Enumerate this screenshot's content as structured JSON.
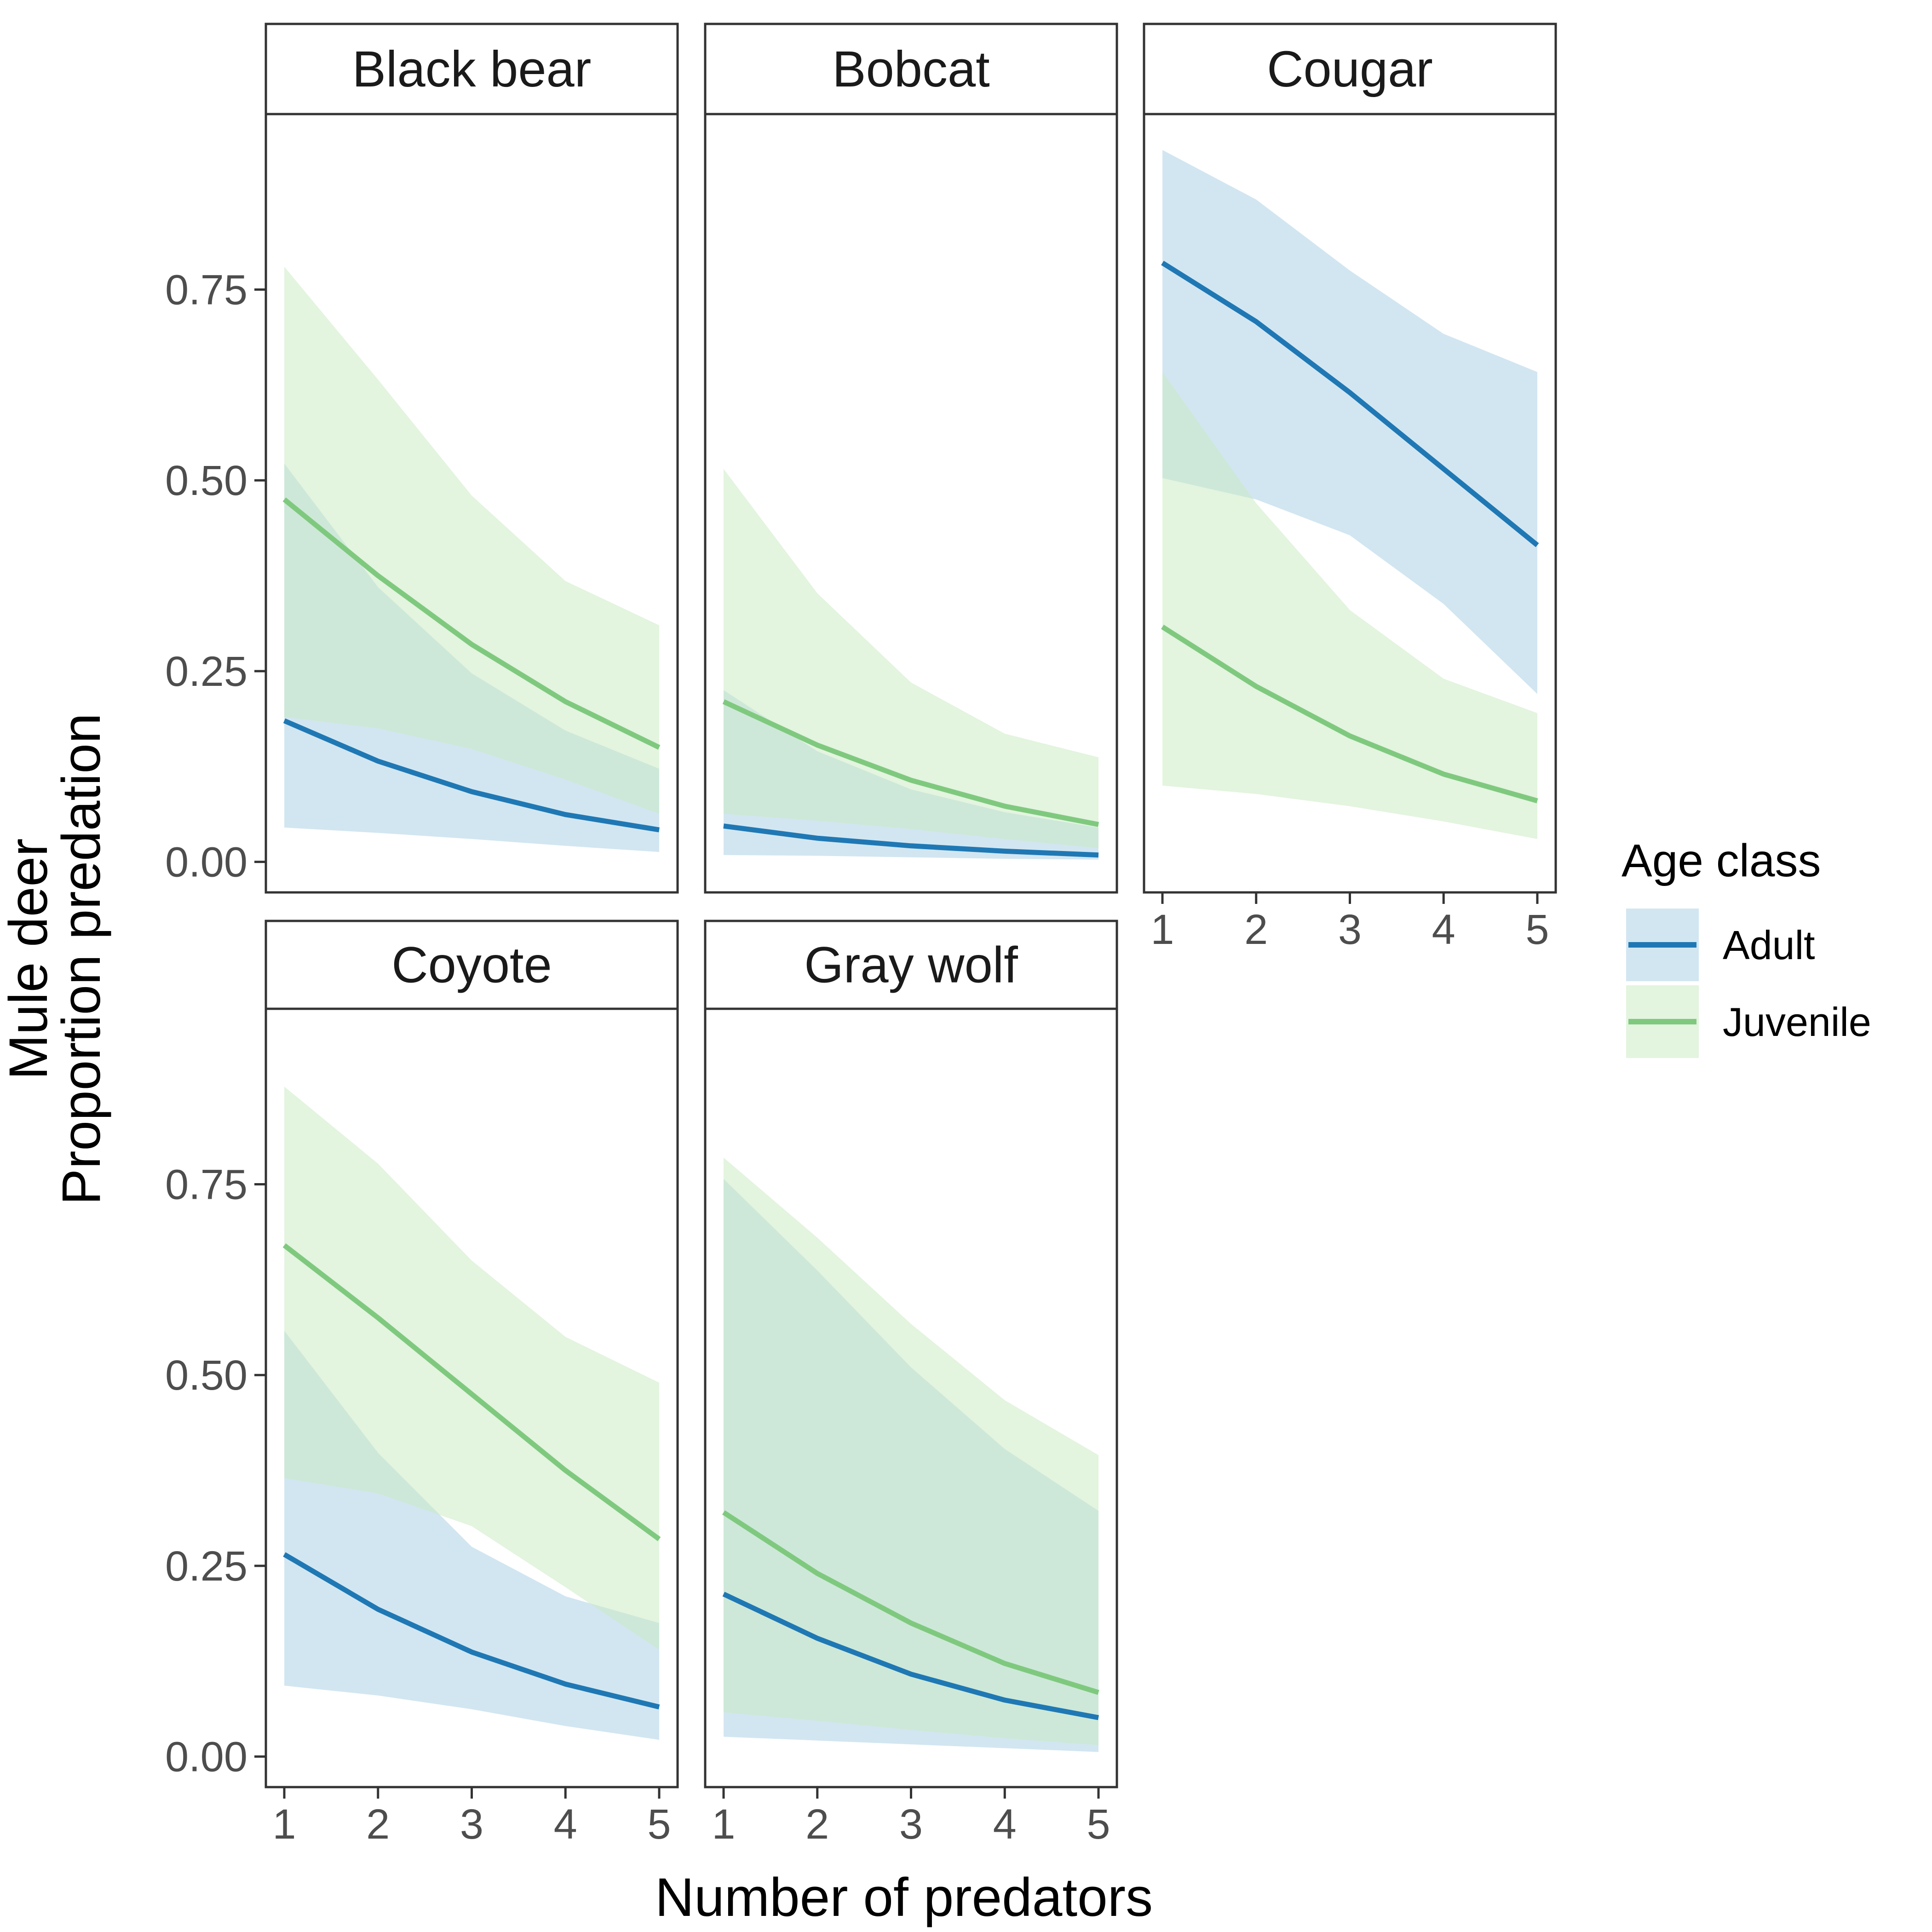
{
  "chart_data": {
    "type": "line",
    "subtype": "faceted line with confidence ribbons",
    "ylabel_line1": "Mule deer",
    "ylabel_line2": "Proportion predation",
    "xlabel": "Number of predators",
    "x": [
      1,
      2,
      3,
      4,
      5
    ],
    "x_ticks": [
      "1",
      "2",
      "3",
      "4",
      "5"
    ],
    "ylim": [
      -0.04,
      0.98
    ],
    "y_ticks": [
      0.0,
      0.25,
      0.5,
      0.75
    ],
    "y_tick_labels": [
      "0.00",
      "0.25",
      "0.50",
      "0.75"
    ],
    "grid": false,
    "legend": {
      "title": "Age class",
      "position": "right",
      "entries": [
        {
          "name": "Adult",
          "line_color": "#1f78b4",
          "fill_color": "#a6cee3"
        },
        {
          "name": "Juvenile",
          "line_color": "#7fc97f",
          "fill_color": "#c7e9c0"
        }
      ]
    },
    "panels": [
      {
        "title": "Black bear",
        "series": [
          {
            "name": "Adult",
            "values": [
              0.185,
              0.132,
              0.092,
              0.062,
              0.042
            ],
            "lower": [
              0.045,
              0.038,
              0.03,
              0.021,
              0.013
            ],
            "upper": [
              0.522,
              0.36,
              0.247,
              0.172,
              0.122
            ]
          },
          {
            "name": "Juvenile",
            "values": [
              0.475,
              0.375,
              0.285,
              0.21,
              0.15
            ],
            "lower": [
              0.19,
              0.175,
              0.148,
              0.108,
              0.063
            ],
            "upper": [
              0.78,
              0.632,
              0.48,
              0.368,
              0.31
            ]
          }
        ]
      },
      {
        "title": "Bobcat",
        "series": [
          {
            "name": "Adult",
            "values": [
              0.047,
              0.031,
              0.021,
              0.014,
              0.009
            ],
            "lower": [
              0.009,
              0.008,
              0.006,
              0.004,
              0.003
            ],
            "upper": [
              0.225,
              0.145,
              0.095,
              0.065,
              0.045
            ]
          },
          {
            "name": "Juvenile",
            "values": [
              0.21,
              0.153,
              0.107,
              0.073,
              0.049
            ],
            "lower": [
              0.063,
              0.054,
              0.043,
              0.03,
              0.018
            ],
            "upper": [
              0.515,
              0.352,
              0.235,
              0.168,
              0.137
            ]
          }
        ]
      },
      {
        "title": "Cougar",
        "series": [
          {
            "name": "Adult",
            "values": [
              0.785,
              0.708,
              0.615,
              0.515,
              0.415
            ],
            "lower": [
              0.503,
              0.475,
              0.428,
              0.338,
              0.22
            ],
            "upper": [
              0.933,
              0.868,
              0.775,
              0.692,
              0.642
            ]
          },
          {
            "name": "Juvenile",
            "values": [
              0.308,
              0.23,
              0.165,
              0.115,
              0.08
            ],
            "lower": [
              0.1,
              0.089,
              0.073,
              0.053,
              0.03
            ],
            "upper": [
              0.642,
              0.47,
              0.33,
              0.24,
              0.195
            ]
          }
        ]
      },
      {
        "title": "Coyote",
        "series": [
          {
            "name": "Adult",
            "values": [
              0.265,
              0.193,
              0.137,
              0.095,
              0.065
            ],
            "lower": [
              0.093,
              0.08,
              0.062,
              0.04,
              0.022
            ],
            "upper": [
              0.558,
              0.398,
              0.275,
              0.21,
              0.175
            ]
          },
          {
            "name": "Juvenile",
            "values": [
              0.67,
              0.575,
              0.475,
              0.375,
              0.285
            ],
            "lower": [
              0.365,
              0.345,
              0.302,
              0.222,
              0.14
            ],
            "upper": [
              0.878,
              0.777,
              0.65,
              0.55,
              0.49
            ]
          }
        ]
      },
      {
        "title": "Gray wolf",
        "series": [
          {
            "name": "Adult",
            "values": [
              0.213,
              0.155,
              0.108,
              0.074,
              0.051
            ],
            "lower": [
              0.026,
              0.021,
              0.016,
              0.011,
              0.006
            ],
            "upper": [
              0.757,
              0.637,
              0.51,
              0.403,
              0.322
            ]
          },
          {
            "name": "Juvenile",
            "values": [
              0.32,
              0.24,
              0.175,
              0.122,
              0.084
            ],
            "lower": [
              0.058,
              0.047,
              0.035,
              0.024,
              0.015
            ],
            "upper": [
              0.785,
              0.68,
              0.567,
              0.467,
              0.395
            ]
          }
        ]
      }
    ]
  }
}
